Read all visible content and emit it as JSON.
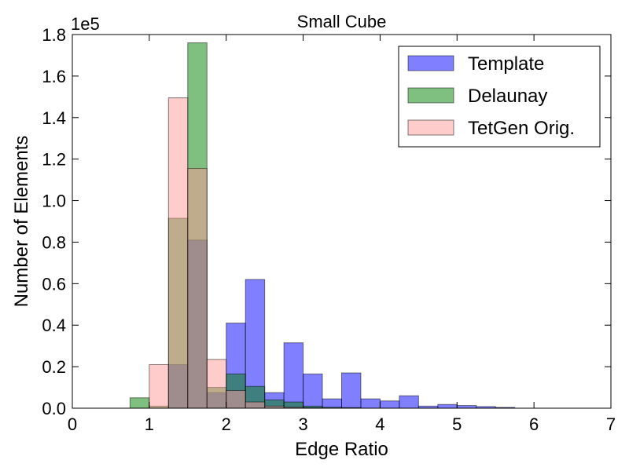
{
  "chart_data": {
    "type": "bar",
    "title": "Small Cube",
    "xlabel": "Edge Ratio",
    "ylabel": "Number of Elements",
    "y_multiplier_label": "1e5",
    "xlim": [
      0,
      7
    ],
    "ylim": [
      0,
      1.8
    ],
    "x_ticks": [
      "0",
      "1",
      "2",
      "3",
      "4",
      "5",
      "6",
      "7"
    ],
    "y_ticks": [
      "0.0",
      "0.2",
      "0.4",
      "0.6",
      "0.8",
      "1.0",
      "1.2",
      "1.4",
      "1.6",
      "1.8"
    ],
    "grid": false,
    "legend_position": "top-right",
    "series": [
      {
        "name": "Template",
        "color": "#0000ff",
        "opacity": 0.5,
        "bin_start": 1.25,
        "bin_width": 0.25,
        "values": [
          0.21,
          0.81,
          0.075,
          0.41,
          0.62,
          0.075,
          0.315,
          0.165,
          0.045,
          0.17,
          0.045,
          0.035,
          0.06,
          0.01,
          0.018,
          0.013,
          0.008,
          0.004
        ]
      },
      {
        "name": "Delaunay",
        "color": "#008000",
        "opacity": 0.5,
        "bin_start": 0.75,
        "bin_width": 0.25,
        "values": [
          0.05,
          0.01,
          0.915,
          1.76,
          0.1,
          0.165,
          0.105,
          0.04,
          0.03,
          0.01,
          0.005,
          0.003
        ]
      },
      {
        "name": "TetGen Orig.",
        "color": "#ff9999",
        "opacity": 0.5,
        "bin_start": 1.0,
        "bin_width": 0.25,
        "values": [
          0.21,
          1.495,
          1.155,
          0.235,
          0.085,
          0.03,
          0.01,
          0.005,
          0.002
        ]
      }
    ]
  }
}
